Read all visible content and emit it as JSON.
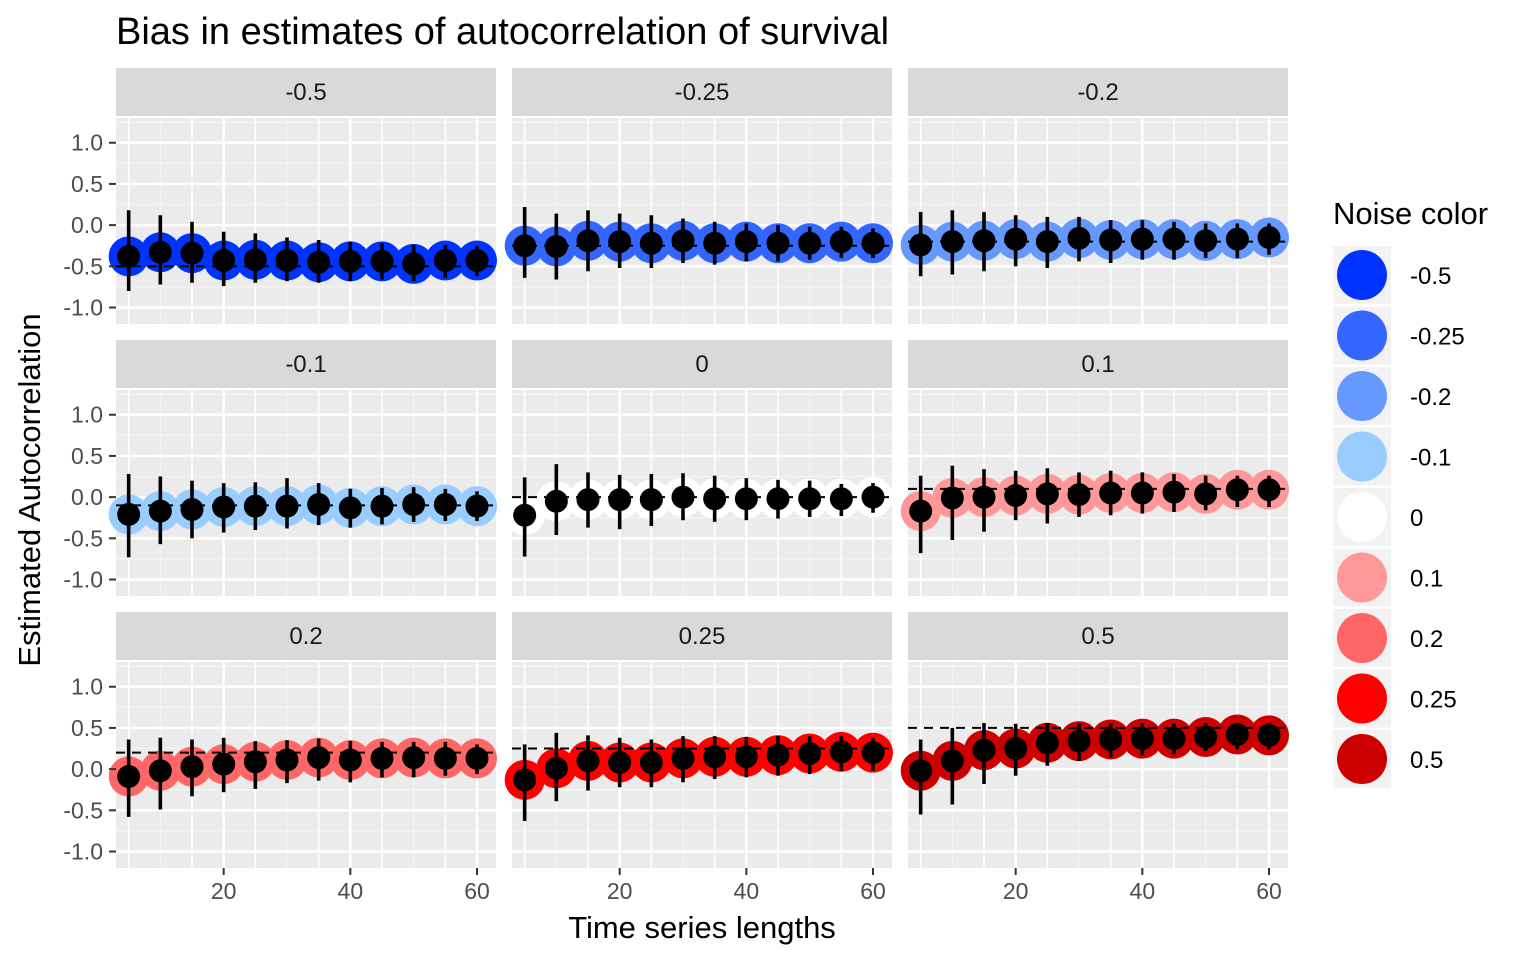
{
  "chart_data": {
    "type": "scatter",
    "title": "Bias in estimates of autocorrelation of survival",
    "xlabel": "Time series lengths",
    "ylabel": "Estimated Autocorrelation",
    "xlim": [
      3,
      63
    ],
    "ylim": [
      -1.2,
      1.3
    ],
    "x_ticks": [
      20,
      40,
      60
    ],
    "x_tick_labels": [
      "20",
      "40",
      "60"
    ],
    "y_ticks": [
      1.0,
      0.5,
      0.0,
      -0.5,
      -1.0
    ],
    "y_tick_labels": [
      "1.0",
      "0.5",
      "0.0",
      "-0.5",
      "-1.0"
    ],
    "grid": true,
    "legend": {
      "title": "Noise color",
      "placement": "right",
      "entries": [
        {
          "label": "-0.5",
          "color": "#0033ff"
        },
        {
          "label": "-0.25",
          "color": "#3366ff"
        },
        {
          "label": "-0.2",
          "color": "#6699ff"
        },
        {
          "label": "-0.1",
          "color": "#99ccff"
        },
        {
          "label": "0",
          "color": "#ffffff"
        },
        {
          "label": "0.1",
          "color": "#ff9999"
        },
        {
          "label": "0.2",
          "color": "#ff6666"
        },
        {
          "label": "0.25",
          "color": "#ff0000"
        },
        {
          "label": "0.5",
          "color": "#cc0000"
        }
      ]
    },
    "x": [
      5,
      10,
      15,
      20,
      25,
      30,
      35,
      40,
      45,
      50,
      55,
      60
    ],
    "panels": [
      {
        "label": "-0.5",
        "true_value": -0.5,
        "color": "#0033ff",
        "estimates": [
          -0.38,
          -0.33,
          -0.34,
          -0.43,
          -0.42,
          -0.43,
          -0.45,
          -0.44,
          -0.44,
          -0.47,
          -0.43,
          -0.43
        ],
        "lower": [
          -0.8,
          -0.72,
          -0.7,
          -0.74,
          -0.7,
          -0.68,
          -0.7,
          -0.68,
          -0.66,
          -0.68,
          -0.64,
          -0.62
        ],
        "upper": [
          0.18,
          0.12,
          0.04,
          -0.08,
          -0.1,
          -0.15,
          -0.18,
          -0.2,
          -0.22,
          -0.24,
          -0.24,
          -0.25
        ]
      },
      {
        "label": "-0.25",
        "true_value": -0.25,
        "color": "#3366ff",
        "estimates": [
          -0.25,
          -0.26,
          -0.19,
          -0.2,
          -0.22,
          -0.19,
          -0.22,
          -0.2,
          -0.22,
          -0.22,
          -0.2,
          -0.22
        ],
        "lower": [
          -0.64,
          -0.66,
          -0.56,
          -0.52,
          -0.52,
          -0.46,
          -0.48,
          -0.44,
          -0.44,
          -0.42,
          -0.4,
          -0.4
        ],
        "upper": [
          0.22,
          0.14,
          0.18,
          0.14,
          0.12,
          0.08,
          0.04,
          0.02,
          0.0,
          -0.02,
          -0.02,
          -0.04
        ]
      },
      {
        "label": "-0.2",
        "true_value": -0.2,
        "color": "#6699ff",
        "estimates": [
          -0.24,
          -0.2,
          -0.19,
          -0.17,
          -0.2,
          -0.16,
          -0.18,
          -0.17,
          -0.17,
          -0.19,
          -0.17,
          -0.15
        ],
        "lower": [
          -0.62,
          -0.6,
          -0.56,
          -0.5,
          -0.52,
          -0.44,
          -0.46,
          -0.42,
          -0.42,
          -0.4,
          -0.4,
          -0.36
        ],
        "upper": [
          0.16,
          0.18,
          0.16,
          0.12,
          0.1,
          0.1,
          0.06,
          0.06,
          0.04,
          0.02,
          0.02,
          0.02
        ]
      },
      {
        "label": "-0.1",
        "true_value": -0.1,
        "color": "#99ccff",
        "estimates": [
          -0.21,
          -0.17,
          -0.15,
          -0.12,
          -0.11,
          -0.11,
          -0.09,
          -0.13,
          -0.11,
          -0.09,
          -0.09,
          -0.11
        ],
        "lower": [
          -0.73,
          -0.57,
          -0.5,
          -0.43,
          -0.4,
          -0.38,
          -0.34,
          -0.37,
          -0.33,
          -0.3,
          -0.29,
          -0.29
        ],
        "upper": [
          0.28,
          0.25,
          0.2,
          0.17,
          0.18,
          0.23,
          0.17,
          0.1,
          0.11,
          0.12,
          0.1,
          0.07
        ]
      },
      {
        "label": "0",
        "true_value": 0.0,
        "color": "#ffffff",
        "estimates": [
          -0.22,
          -0.05,
          -0.03,
          -0.03,
          -0.03,
          0.0,
          -0.02,
          -0.02,
          -0.02,
          -0.02,
          -0.02,
          0.0
        ],
        "lower": [
          -0.72,
          -0.46,
          -0.37,
          -0.39,
          -0.35,
          -0.28,
          -0.3,
          -0.28,
          -0.26,
          -0.24,
          -0.23,
          -0.19
        ],
        "upper": [
          0.24,
          0.4,
          0.3,
          0.27,
          0.28,
          0.29,
          0.26,
          0.23,
          0.21,
          0.2,
          0.16,
          0.17
        ]
      },
      {
        "label": "0.1",
        "true_value": 0.1,
        "color": "#ff9999",
        "estimates": [
          -0.17,
          -0.01,
          0.0,
          0.02,
          0.04,
          0.03,
          0.05,
          0.05,
          0.06,
          0.04,
          0.09,
          0.09
        ],
        "lower": [
          -0.68,
          -0.52,
          -0.42,
          -0.28,
          -0.32,
          -0.24,
          -0.22,
          -0.2,
          -0.18,
          -0.16,
          -0.12,
          -0.12
        ],
        "upper": [
          0.26,
          0.38,
          0.34,
          0.32,
          0.35,
          0.3,
          0.32,
          0.3,
          0.28,
          0.26,
          0.26,
          0.26
        ]
      },
      {
        "label": "0.2",
        "true_value": 0.2,
        "color": "#ff6666",
        "estimates": [
          -0.09,
          -0.02,
          0.03,
          0.06,
          0.09,
          0.11,
          0.14,
          0.11,
          0.13,
          0.14,
          0.13,
          0.13
        ],
        "lower": [
          -0.58,
          -0.49,
          -0.33,
          -0.28,
          -0.24,
          -0.17,
          -0.14,
          -0.16,
          -0.1,
          -0.1,
          -0.08,
          -0.06
        ],
        "upper": [
          0.36,
          0.38,
          0.36,
          0.38,
          0.34,
          0.35,
          0.37,
          0.34,
          0.33,
          0.33,
          0.33,
          0.3
        ]
      },
      {
        "label": "0.25",
        "true_value": 0.25,
        "color": "#ff0000",
        "estimates": [
          -0.13,
          0.01,
          0.1,
          0.08,
          0.08,
          0.13,
          0.15,
          0.15,
          0.17,
          0.19,
          0.21,
          0.2
        ],
        "lower": [
          -0.63,
          -0.39,
          -0.26,
          -0.22,
          -0.22,
          -0.16,
          -0.12,
          -0.1,
          -0.08,
          -0.06,
          -0.02,
          -0.02
        ],
        "upper": [
          0.3,
          0.44,
          0.41,
          0.38,
          0.36,
          0.4,
          0.4,
          0.39,
          0.4,
          0.4,
          0.4,
          0.38
        ]
      },
      {
        "label": "0.5",
        "true_value": 0.5,
        "color": "#cc0000",
        "estimates": [
          -0.02,
          0.1,
          0.23,
          0.25,
          0.32,
          0.34,
          0.36,
          0.37,
          0.37,
          0.39,
          0.42,
          0.41
        ],
        "lower": [
          -0.55,
          -0.43,
          -0.18,
          -0.08,
          0.04,
          0.1,
          0.14,
          0.16,
          0.18,
          0.22,
          0.24,
          0.24
        ],
        "upper": [
          0.36,
          0.5,
          0.56,
          0.55,
          0.56,
          0.56,
          0.56,
          0.56,
          0.55,
          0.56,
          0.56,
          0.56
        ]
      }
    ]
  }
}
